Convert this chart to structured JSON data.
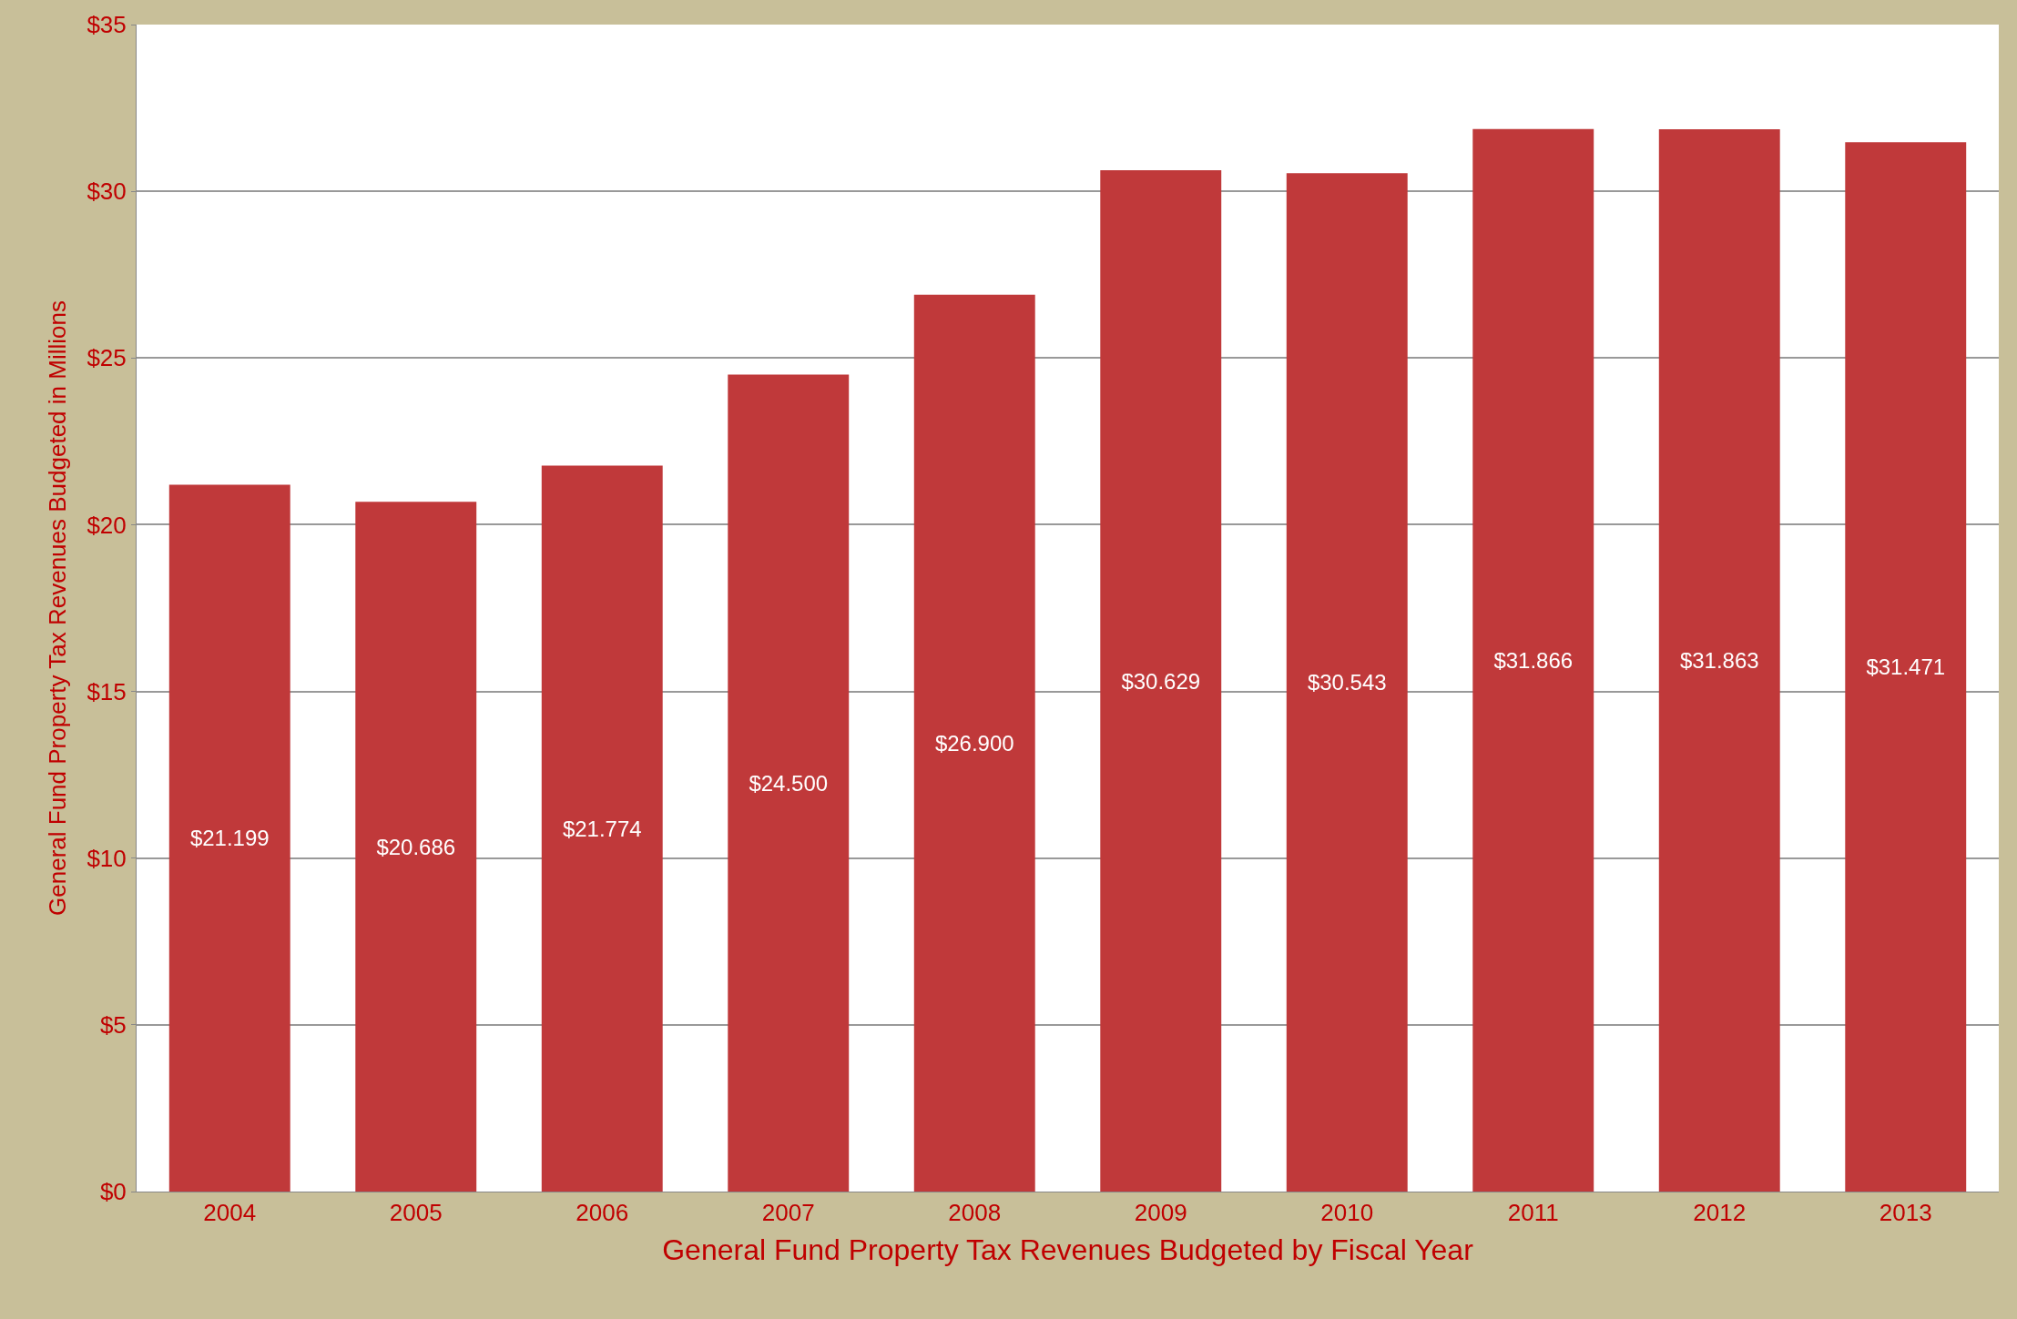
{
  "chart_data": {
    "type": "bar",
    "xlabel": "General Fund Property Tax Revenues Budgeted by Fiscal Year",
    "ylabel": "General Fund Property Tax Revenues Budgeted in Millions",
    "categories": [
      "2004",
      "2005",
      "2006",
      "2007",
      "2008",
      "2009",
      "2010",
      "2011",
      "2012",
      "2013"
    ],
    "values": [
      21.199,
      20.686,
      21.774,
      24.5,
      26.9,
      30.629,
      30.543,
      31.866,
      31.863,
      31.471
    ],
    "value_labels": [
      "$21.199",
      "$20.686",
      "$21.774",
      "$24.500",
      "$26.900",
      "$30.629",
      "$30.543",
      "$31.866",
      "$31.863",
      "$31.471"
    ],
    "color": "#c0393a",
    "ylim": [
      0,
      35
    ],
    "yticks": [
      {
        "value": 0,
        "label": "$0"
      },
      {
        "value": 5,
        "label": "$5"
      },
      {
        "value": 10,
        "label": "$10"
      },
      {
        "value": 15,
        "label": "$15"
      },
      {
        "value": 20,
        "label": "$20"
      },
      {
        "value": 25,
        "label": "$25"
      },
      {
        "value": 30,
        "label": "$30"
      },
      {
        "value": 35,
        "label": "$35"
      }
    ],
    "grid": "y"
  }
}
